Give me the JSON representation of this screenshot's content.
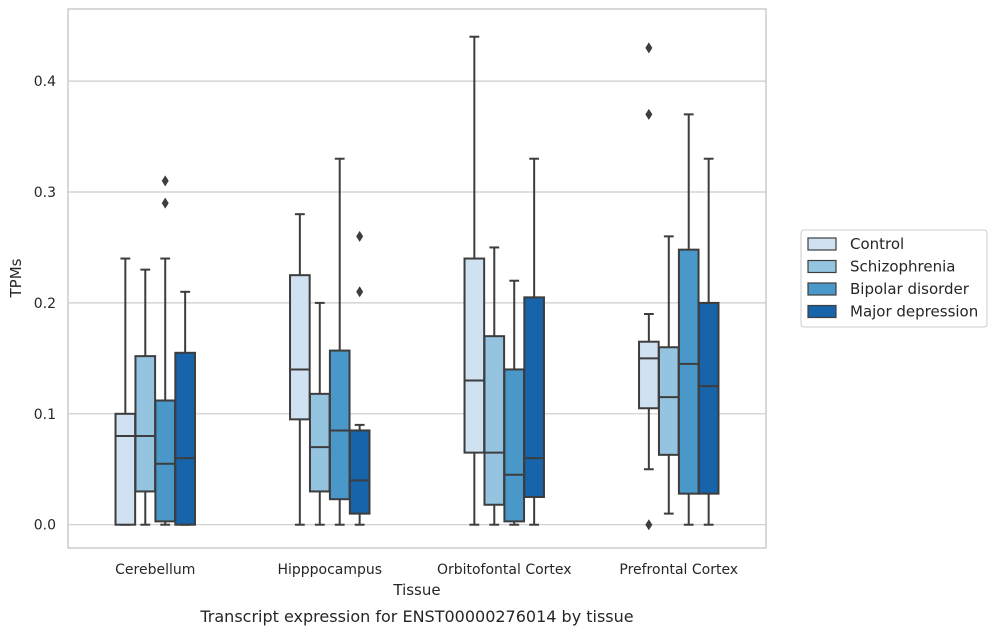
{
  "chart_data": {
    "type": "box",
    "xlabel": "Tissue",
    "ylabel": "TPMs",
    "caption": "Transcript expression for ENST00000276014 by tissue",
    "ylim": [
      -0.021,
      0.465
    ],
    "yticks": [
      "0.0",
      "0.1",
      "0.2",
      "0.3",
      "0.4"
    ],
    "ytick_values": [
      0.0,
      0.1,
      0.2,
      0.3,
      0.4
    ],
    "grid": "horizontal",
    "legend_position": "right",
    "categories": [
      "Cerebellum",
      "Hipppocampus",
      "Orbitofontal Cortex",
      "Prefrontal Cortex"
    ],
    "series": [
      {
        "name": "Control",
        "color": "#d0e1f2",
        "boxes": [
          {
            "whislo": 0.0,
            "q1": 0.0,
            "med": 0.08,
            "q3": 0.1,
            "whishi": 0.24,
            "fliers": []
          },
          {
            "whislo": 0.0,
            "q1": 0.095,
            "med": 0.14,
            "q3": 0.225,
            "whishi": 0.28,
            "fliers": []
          },
          {
            "whislo": 0.0,
            "q1": 0.065,
            "med": 0.13,
            "q3": 0.24,
            "whishi": 0.44,
            "fliers": []
          },
          {
            "whislo": 0.05,
            "q1": 0.105,
            "med": 0.15,
            "q3": 0.165,
            "whishi": 0.19,
            "fliers": [
              0.0,
              0.37,
              0.43
            ]
          }
        ]
      },
      {
        "name": "Schizophrenia",
        "color": "#94c4df",
        "boxes": [
          {
            "whislo": 0.0,
            "q1": 0.03,
            "med": 0.08,
            "q3": 0.152,
            "whishi": 0.23,
            "fliers": []
          },
          {
            "whislo": 0.0,
            "q1": 0.03,
            "med": 0.07,
            "q3": 0.118,
            "whishi": 0.2,
            "fliers": []
          },
          {
            "whislo": 0.0,
            "q1": 0.018,
            "med": 0.065,
            "q3": 0.17,
            "whishi": 0.25,
            "fliers": []
          },
          {
            "whislo": 0.01,
            "q1": 0.063,
            "med": 0.115,
            "q3": 0.16,
            "whishi": 0.26,
            "fliers": []
          }
        ]
      },
      {
        "name": "Bipolar disorder",
        "color": "#4a98c9",
        "boxes": [
          {
            "whislo": 0.0,
            "q1": 0.003,
            "med": 0.055,
            "q3": 0.112,
            "whishi": 0.24,
            "fliers": [
              0.29,
              0.31
            ]
          },
          {
            "whislo": 0.0,
            "q1": 0.023,
            "med": 0.085,
            "q3": 0.157,
            "whishi": 0.33,
            "fliers": []
          },
          {
            "whislo": 0.0,
            "q1": 0.003,
            "med": 0.045,
            "q3": 0.14,
            "whishi": 0.22,
            "fliers": []
          },
          {
            "whislo": 0.0,
            "q1": 0.028,
            "med": 0.145,
            "q3": 0.248,
            "whishi": 0.37,
            "fliers": []
          }
        ]
      },
      {
        "name": "Major depression",
        "color": "#1764ab",
        "boxes": [
          {
            "whislo": 0.0,
            "q1": 0.0,
            "med": 0.06,
            "q3": 0.155,
            "whishi": 0.21,
            "fliers": []
          },
          {
            "whislo": 0.0,
            "q1": 0.01,
            "med": 0.04,
            "q3": 0.085,
            "whishi": 0.09,
            "fliers": [
              0.21,
              0.26
            ]
          },
          {
            "whislo": 0.0,
            "q1": 0.025,
            "med": 0.06,
            "q3": 0.205,
            "whishi": 0.33,
            "fliers": []
          },
          {
            "whislo": 0.0,
            "q1": 0.028,
            "med": 0.125,
            "q3": 0.2,
            "whishi": 0.33,
            "fliers": []
          }
        ]
      }
    ]
  }
}
